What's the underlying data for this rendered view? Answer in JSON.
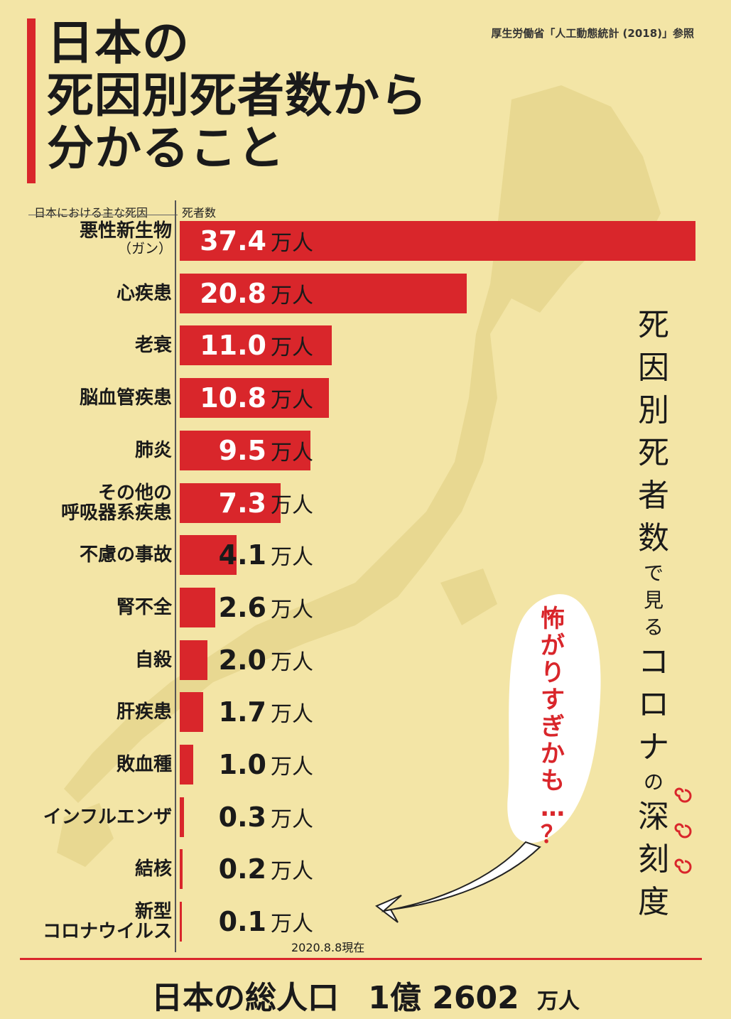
{
  "source": "厚生労働省「人工動態統計 (2018)」参照",
  "title_lines": [
    "日本の",
    "死因別死者数から",
    "分かること"
  ],
  "column_headers": {
    "cause": "日本における主な死因",
    "deaths": "死者数"
  },
  "unit": "万人",
  "date_note": "2020.8.8現在",
  "total": {
    "label": "日本の総人口",
    "value": "1億 2602",
    "unit": "万人"
  },
  "vertical_caption": [
    "死",
    "因",
    "別",
    "死",
    "者",
    "数",
    "で",
    "見",
    "る",
    "コ",
    "ロ",
    "ナ",
    "の",
    "深",
    "刻",
    "度"
  ],
  "balloon": [
    "怖",
    "が",
    "り",
    "す",
    "ぎ",
    "か",
    "も",
    "…",
    "？"
  ],
  "colors": {
    "bar": "#d9262b",
    "background": "#f3e5a6",
    "map": "#eadb93"
  },
  "chart_data": {
    "type": "bar",
    "orientation": "horizontal",
    "categories": [
      "悪性新生物",
      "心疾患",
      "老衰",
      "脳血管疾患",
      "肺炎",
      "その他の呼吸器系疾患",
      "不慮の事故",
      "腎不全",
      "自殺",
      "肝疾患",
      "敗血種",
      "インフルエンザ",
      "結核",
      "新型コロナウイルス"
    ],
    "category_display": [
      [
        "悪性新生物",
        "（ガン）"
      ],
      [
        "心疾患"
      ],
      [
        "老衰"
      ],
      [
        "脳血管疾患"
      ],
      [
        "肺炎"
      ],
      [
        "その他の",
        "呼吸器系疾患"
      ],
      [
        "不慮の事故"
      ],
      [
        "腎不全"
      ],
      [
        "自殺"
      ],
      [
        "肝疾患"
      ],
      [
        "敗血種"
      ],
      [
        "インフルエンザ"
      ],
      [
        "結核"
      ],
      [
        "新型",
        "コロナウイルス"
      ]
    ],
    "values": [
      37.4,
      20.8,
      11.0,
      10.8,
      9.5,
      7.3,
      4.1,
      2.6,
      2.0,
      1.7,
      1.0,
      0.3,
      0.2,
      0.1
    ],
    "value_labels": [
      "37.4",
      "20.8",
      "11.0",
      "10.8",
      "9.5",
      "7.3",
      "4.1",
      "2.6",
      "2.0",
      "1.7",
      "1.0",
      "0.3",
      "0.2",
      "0.1"
    ],
    "xlabel": "死者数",
    "ylabel": "日本における主な死因",
    "xlim": [
      0,
      37.4
    ]
  }
}
